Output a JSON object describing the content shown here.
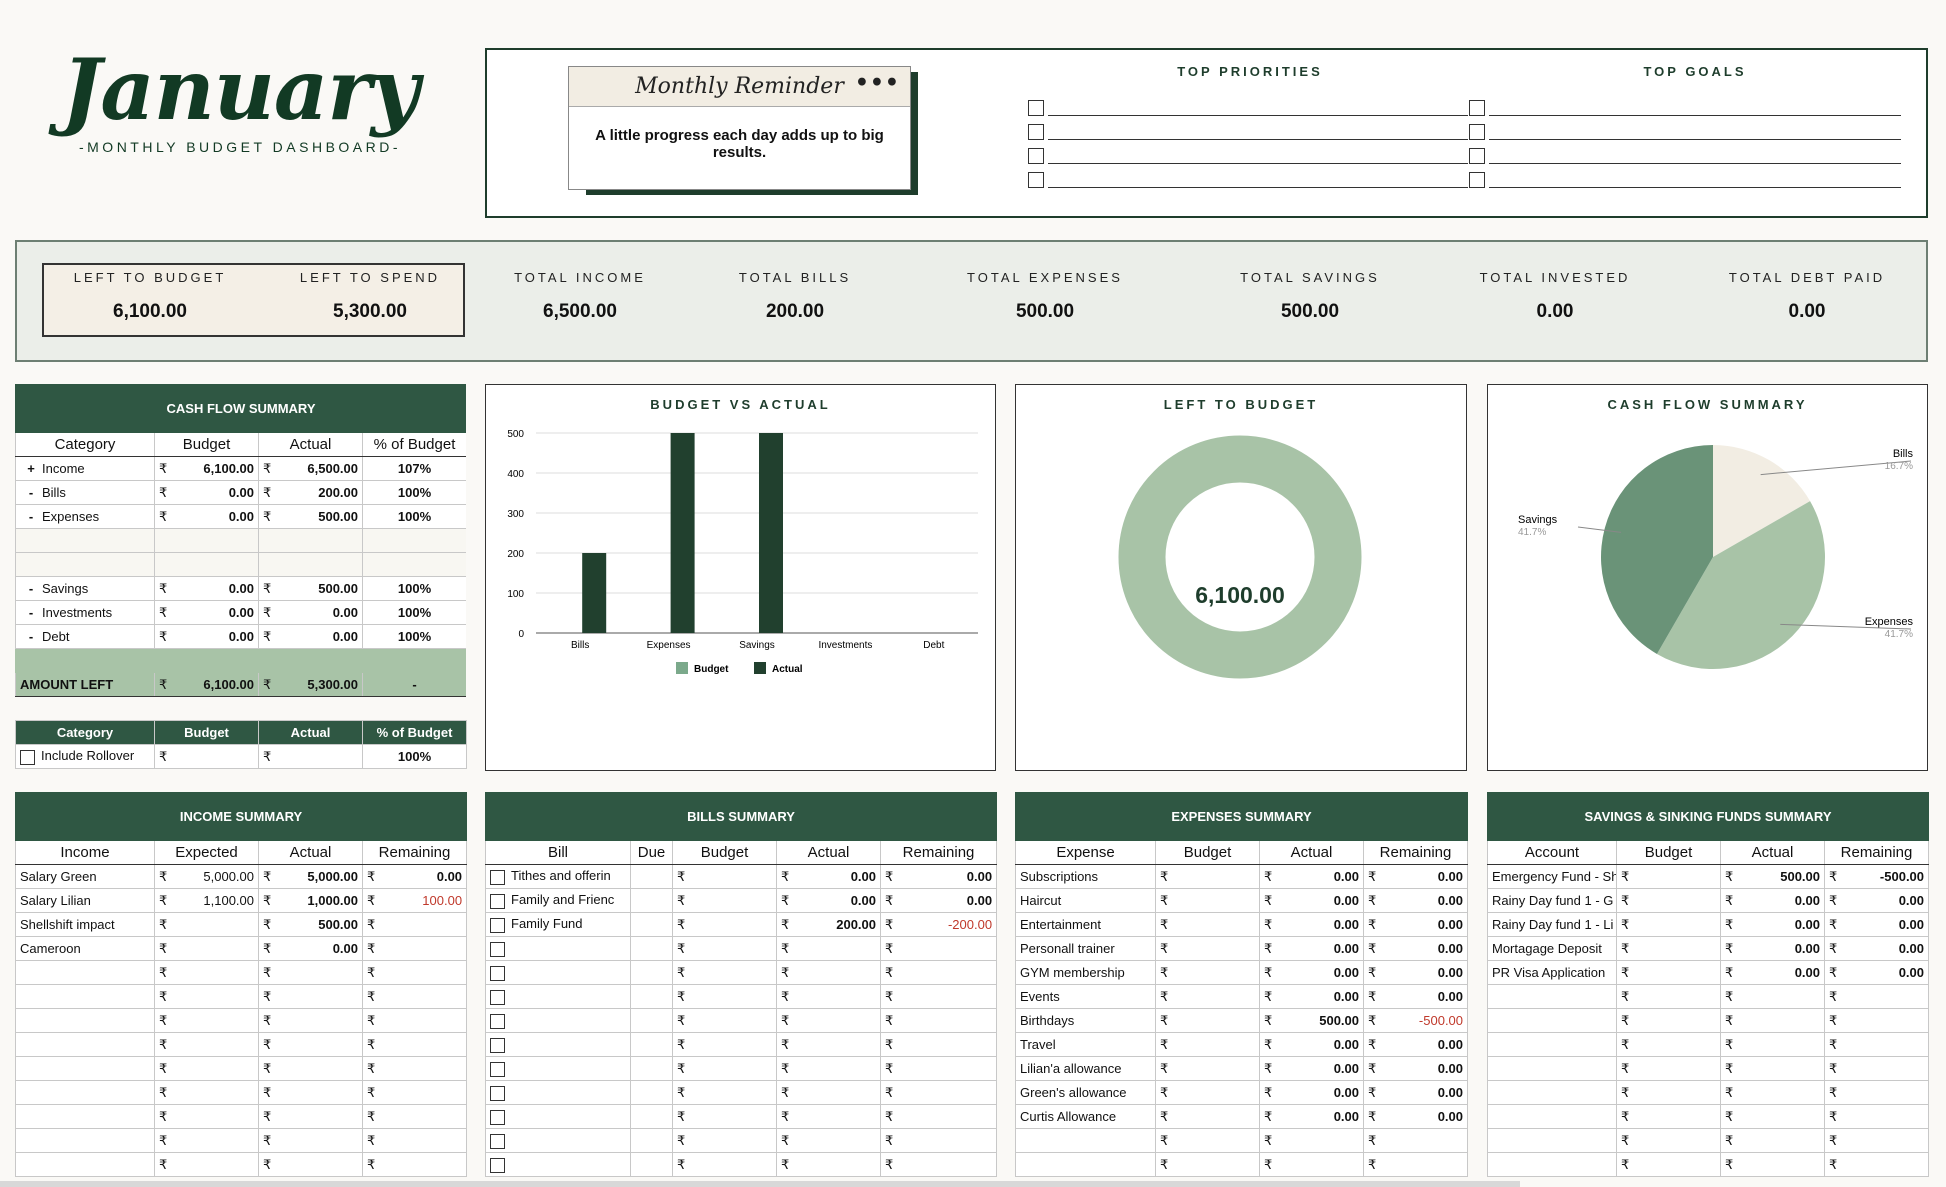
{
  "header": {
    "month": "January",
    "subtitle": "-MONTHLY BUDGET DASHBOARD-"
  },
  "reminder": {
    "title": "Monthly Reminder",
    "menu": "•••",
    "text": "A little progress each day adds up to big results."
  },
  "priorities": {
    "title": "TOP PRIORITIES",
    "goals_title": "TOP GOALS"
  },
  "left": {
    "budget_label": "LEFT TO BUDGET",
    "budget_value": "6,100.00",
    "spend_label": "LEFT TO SPEND",
    "spend_value": "5,300.00"
  },
  "stats": [
    {
      "label": "TOTAL INCOME",
      "value": "6,500.00"
    },
    {
      "label": "TOTAL BILLS",
      "value": "200.00"
    },
    {
      "label": "TOTAL EXPENSES",
      "value": "500.00"
    },
    {
      "label": "TOTAL SAVINGS",
      "value": "500.00"
    },
    {
      "label": "TOTAL INVESTED",
      "value": "0.00"
    },
    {
      "label": "TOTAL DEBT PAID",
      "value": "0.00"
    }
  ],
  "currency": "₹",
  "cashflow": {
    "title": "CASH FLOW SUMMARY",
    "cols": [
      "Category",
      "Budget",
      "Actual",
      "% of Budget"
    ],
    "rows": [
      {
        "sign": "+",
        "cat": "Income",
        "budget": "6,100.00",
        "actual": "6,500.00",
        "pct": "107%"
      },
      {
        "sign": "-",
        "cat": "Bills",
        "budget": "0.00",
        "actual": "200.00",
        "pct": "100%"
      },
      {
        "sign": "-",
        "cat": "Expenses",
        "budget": "0.00",
        "actual": "500.00",
        "pct": "100%"
      },
      {
        "sign": "-",
        "cat": "Savings",
        "budget": "0.00",
        "actual": "500.00",
        "pct": "100%"
      },
      {
        "sign": "-",
        "cat": "Investments",
        "budget": "0.00",
        "actual": "0.00",
        "pct": "100%"
      },
      {
        "sign": "-",
        "cat": "Debt",
        "budget": "0.00",
        "actual": "0.00",
        "pct": "100%"
      }
    ],
    "amount_left": {
      "label": "AMOUNT LEFT",
      "budget": "6,100.00",
      "actual": "5,300.00",
      "pct": "-"
    }
  },
  "rollover": {
    "cols": [
      "Category",
      "Budget",
      "Actual",
      "% of Budget"
    ],
    "label": "Include Rollover",
    "pct": "100%"
  },
  "charts": {
    "bva_title": "BUDGET VS ACTUAL",
    "ltb_title": "LEFT TO BUDGET",
    "ltb_value": "6,100.00",
    "cfs_title": "CASH FLOW SUMMARY"
  },
  "chart_data": [
    {
      "type": "bar",
      "title": "BUDGET VS ACTUAL",
      "categories": [
        "Bills",
        "Expenses",
        "Savings",
        "Investments",
        "Debt"
      ],
      "series": [
        {
          "name": "Budget",
          "values": [
            0,
            0,
            0,
            0,
            0
          ],
          "color": "#7ba98b"
        },
        {
          "name": "Actual",
          "values": [
            200,
            500,
            500,
            0,
            0
          ],
          "color": "#21402e"
        }
      ],
      "yticks": [
        0,
        100,
        200,
        300,
        400,
        500
      ],
      "ylim": [
        0,
        500
      ],
      "legend": "bottom",
      "grid": true
    },
    {
      "type": "pie",
      "title": "LEFT TO BUDGET",
      "donut": true,
      "values": [
        6100
      ],
      "center_label": "6,100.00",
      "colors": [
        "#a8c3a7"
      ]
    },
    {
      "type": "pie",
      "title": "CASH FLOW SUMMARY",
      "slices": [
        {
          "name": "Bills",
          "value": 16.7,
          "label": "16.7%",
          "color": "#f2ede3"
        },
        {
          "name": "Expenses",
          "value": 41.7,
          "label": "41.7%",
          "color": "#a8c3a7"
        },
        {
          "name": "Savings",
          "value": 41.7,
          "label": "41.7%",
          "color": "#6a9378"
        }
      ]
    }
  ],
  "income": {
    "title": "INCOME SUMMARY",
    "cols": [
      "Income",
      "Expected",
      "Actual",
      "Remaining"
    ],
    "rows": [
      {
        "name": "Salary Green",
        "exp": "5,000.00",
        "act": "5,000.00",
        "rem": "0.00",
        "neg": false
      },
      {
        "name": "Salary Lilian",
        "exp": "1,100.00",
        "act": "1,000.00",
        "rem": "100.00",
        "neg": true
      },
      {
        "name": "Shellshift impact",
        "exp": "",
        "act": "500.00",
        "rem": "",
        "neg": false
      },
      {
        "name": "Cameroon",
        "exp": "",
        "act": "0.00",
        "rem": "",
        "neg": false
      }
    ],
    "blank_rows": 9
  },
  "bills": {
    "title": "BILLS SUMMARY",
    "cols": [
      "Bill",
      "Due",
      "Budget",
      "Actual",
      "Remaining"
    ],
    "rows": [
      {
        "name": "Tithes and offerin",
        "act": "0.00",
        "rem": "0.00",
        "neg": false
      },
      {
        "name": "Family and Frienc",
        "act": "0.00",
        "rem": "0.00",
        "neg": false
      },
      {
        "name": "Family Fund",
        "act": "200.00",
        "rem": "-200.00",
        "neg": true
      }
    ],
    "blank_rows": 10
  },
  "expenses": {
    "title": "EXPENSES SUMMARY",
    "cols": [
      "Expense",
      "Budget",
      "Actual",
      "Remaining"
    ],
    "rows": [
      {
        "name": "Subscriptions",
        "act": "0.00",
        "rem": "0.00",
        "neg": false
      },
      {
        "name": "Haircut",
        "act": "0.00",
        "rem": "0.00",
        "neg": false
      },
      {
        "name": "Entertainment",
        "act": "0.00",
        "rem": "0.00",
        "neg": false
      },
      {
        "name": "Personall trainer",
        "act": "0.00",
        "rem": "0.00",
        "neg": false
      },
      {
        "name": "GYM membership",
        "act": "0.00",
        "rem": "0.00",
        "neg": false
      },
      {
        "name": "Events",
        "act": "0.00",
        "rem": "0.00",
        "neg": false
      },
      {
        "name": "Birthdays",
        "act": "500.00",
        "rem": "-500.00",
        "neg": true
      },
      {
        "name": "Travel",
        "act": "0.00",
        "rem": "0.00",
        "neg": false
      },
      {
        "name": "Lilian'a allowance",
        "act": "0.00",
        "rem": "0.00",
        "neg": false
      },
      {
        "name": "Green's allowance",
        "act": "0.00",
        "rem": "0.00",
        "neg": false
      },
      {
        "name": "Curtis Allowance",
        "act": "0.00",
        "rem": "0.00",
        "neg": false
      }
    ],
    "blank_rows": 2
  },
  "savings": {
    "title": "SAVINGS & SINKING FUNDS SUMMARY",
    "cols": [
      "Account",
      "Budget",
      "Actual",
      "Remaining"
    ],
    "rows": [
      {
        "name": "Emergency Fund - Sh",
        "act": "500.00",
        "rem": "-500.00",
        "neg": false
      },
      {
        "name": "Rainy Day fund 1 - G",
        "act": "0.00",
        "rem": "0.00",
        "neg": false
      },
      {
        "name": "Rainy Day fund 1 - Li",
        "act": "0.00",
        "rem": "0.00",
        "neg": false
      },
      {
        "name": "Mortagage Deposit",
        "act": "0.00",
        "rem": "0.00",
        "neg": false
      },
      {
        "name": "PR Visa Application",
        "act": "0.00",
        "rem": "0.00",
        "neg": false
      }
    ],
    "blank_rows": 8
  }
}
